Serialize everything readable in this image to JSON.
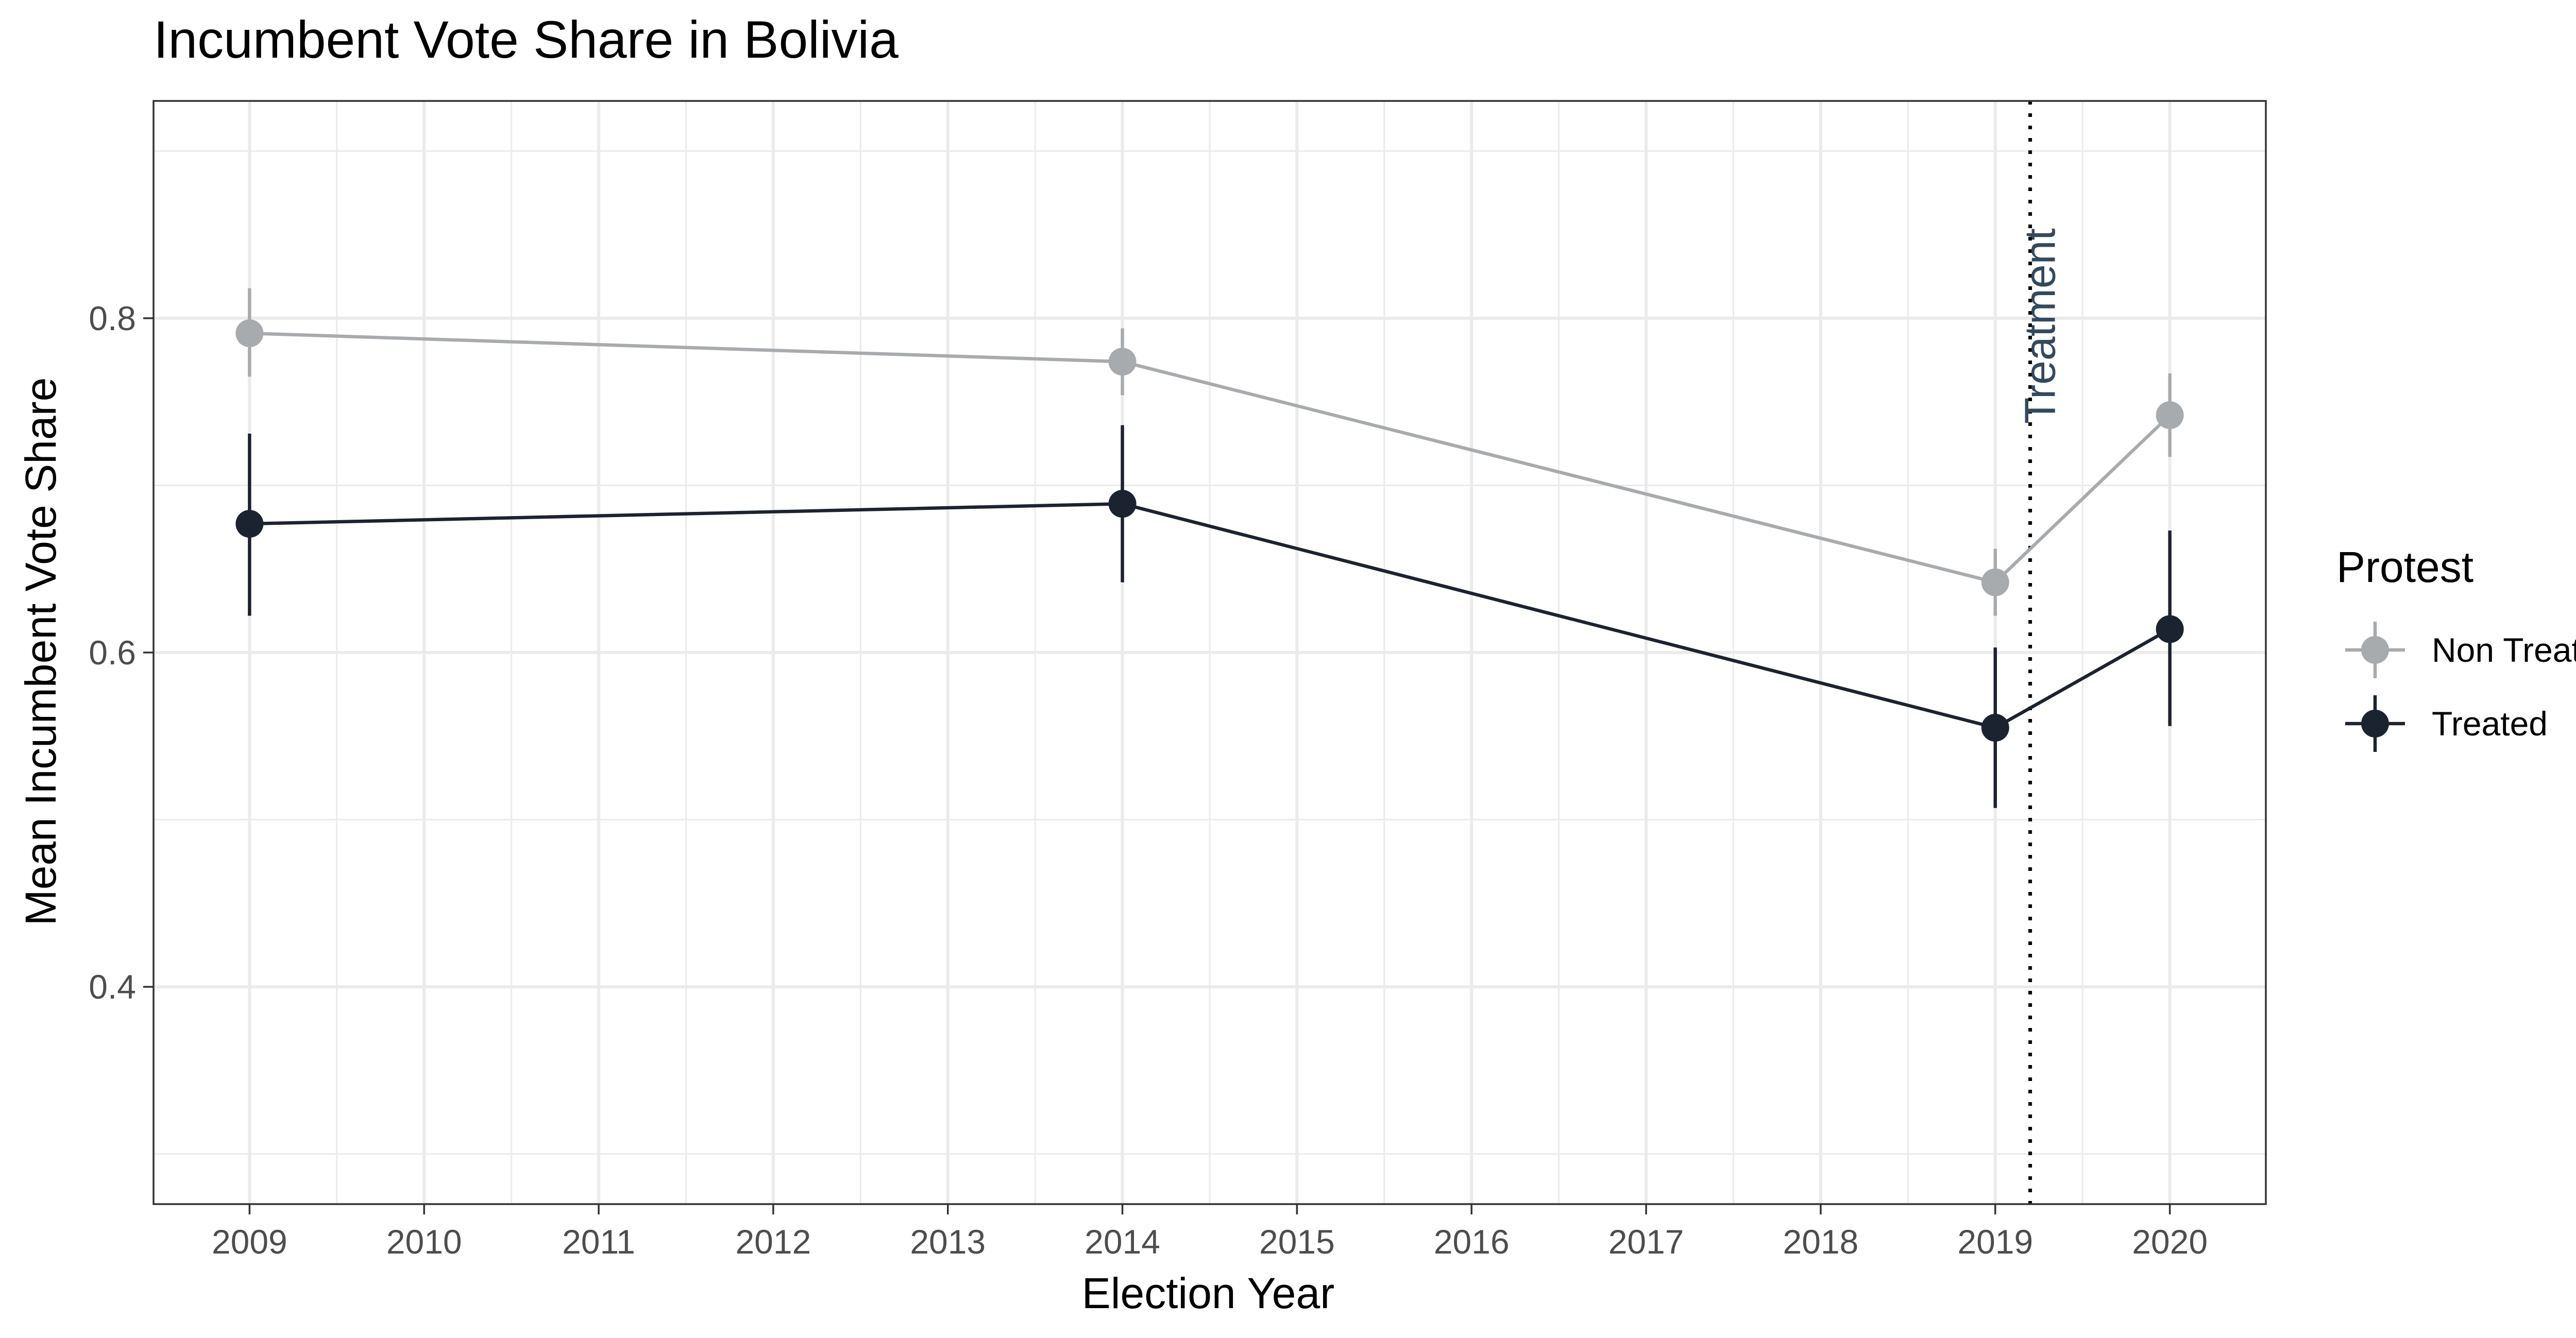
{
  "chart_data": {
    "type": "line",
    "title": "Incumbent Vote Share in Bolivia",
    "xlabel": "Election Year",
    "ylabel": "Mean Incumbent Vote Share",
    "xlim": [
      2008.45,
      2020.55
    ],
    "ylim": [
      0.27,
      0.93
    ],
    "x_ticks": [
      "2009",
      "2010",
      "2011",
      "2012",
      "2013",
      "2014",
      "2015",
      "2016",
      "2017",
      "2018",
      "2019",
      "2020"
    ],
    "y_ticks": [
      "0.4",
      "0.6",
      "0.8"
    ],
    "grid": true,
    "legend": {
      "title": "Protest",
      "position": "right"
    },
    "series": [
      {
        "name": "Non Treated",
        "color": "#A8ABAE",
        "x": [
          2009,
          2014,
          2019,
          2020
        ],
        "y": [
          0.791,
          0.774,
          0.642,
          0.742
        ],
        "error_low": [
          0.765,
          0.754,
          0.622,
          0.717
        ],
        "error_high": [
          0.818,
          0.794,
          0.662,
          0.767
        ]
      },
      {
        "name": "Treated",
        "color": "#1C2330",
        "x": [
          2009,
          2014,
          2019,
          2020
        ],
        "y": [
          0.677,
          0.689,
          0.555,
          0.614
        ],
        "error_low": [
          0.622,
          0.642,
          0.507,
          0.556
        ],
        "error_high": [
          0.731,
          0.736,
          0.603,
          0.673
        ]
      }
    ],
    "annotations": [
      {
        "type": "vline",
        "x": 2019.2,
        "label": "Treatment",
        "style": "dotted",
        "label_color": "#34495E"
      }
    ]
  }
}
